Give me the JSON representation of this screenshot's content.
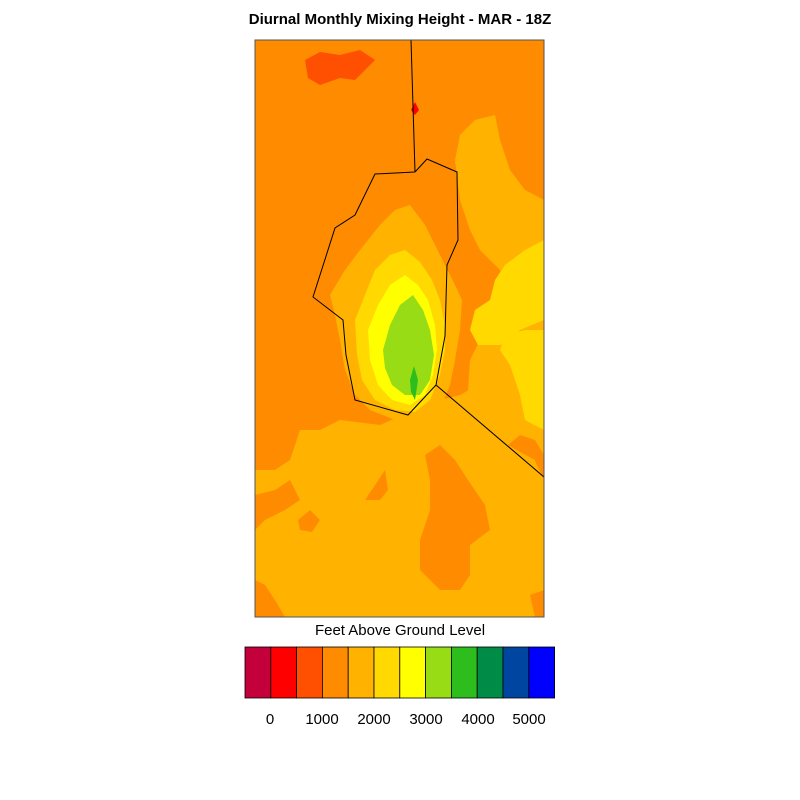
{
  "title": "Diurnal Monthly Mixing Height - MAR - 18Z",
  "colorbar": {
    "label": "Feet Above Ground Level",
    "colors": [
      "#c3003c",
      "#ff0000",
      "#ff4f00",
      "#ff8c00",
      "#ffb300",
      "#ffd900",
      "#ffff00",
      "#97dc14",
      "#2dbe1e",
      "#008c46",
      "#0046a0",
      "#0000ff"
    ],
    "ticks": [
      "0",
      "1000",
      "2000",
      "3000",
      "4000",
      "5000"
    ]
  },
  "map": {
    "background_color": "#ff8c00",
    "contour_levels_colors": {
      "above_2000": "#ffb300",
      "above_2500": "#ffd900",
      "above_3000": "#ffff00",
      "above_3500": "#97dc14",
      "above_4000": "#2dbe1e",
      "below_1500": "#ff4f00"
    }
  }
}
